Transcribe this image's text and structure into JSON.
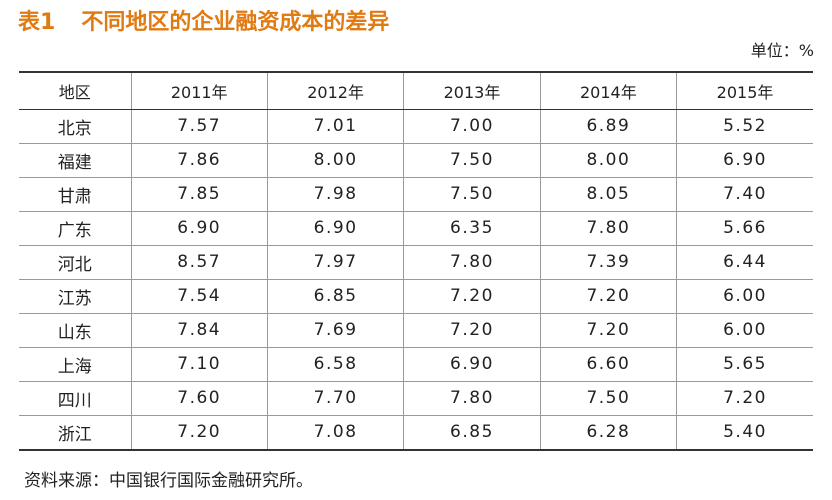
{
  "title": {
    "label": "表1",
    "text": "不同地区的企业融资成本的差异"
  },
  "unit": "单位：%",
  "table": {
    "headers": [
      "地区",
      "2011年",
      "2012年",
      "2013年",
      "2014年",
      "2015年"
    ],
    "rows": [
      {
        "region": "北京",
        "values": [
          "7.57",
          "7.01",
          "7.00",
          "6.89",
          "5.52"
        ]
      },
      {
        "region": "福建",
        "values": [
          "7.86",
          "8.00",
          "7.50",
          "8.00",
          "6.90"
        ]
      },
      {
        "region": "甘肃",
        "values": [
          "7.85",
          "7.98",
          "7.50",
          "8.05",
          "7.40"
        ]
      },
      {
        "region": "广东",
        "values": [
          "6.90",
          "6.90",
          "6.35",
          "7.80",
          "5.66"
        ]
      },
      {
        "region": "河北",
        "values": [
          "8.57",
          "7.97",
          "7.80",
          "7.39",
          "6.44"
        ]
      },
      {
        "region": "江苏",
        "values": [
          "7.54",
          "6.85",
          "7.20",
          "7.20",
          "6.00"
        ]
      },
      {
        "region": "山东",
        "values": [
          "7.84",
          "7.69",
          "7.20",
          "7.20",
          "6.00"
        ]
      },
      {
        "region": "上海",
        "values": [
          "7.10",
          "6.58",
          "6.90",
          "6.60",
          "5.65"
        ]
      },
      {
        "region": "四川",
        "values": [
          "7.60",
          "7.70",
          "7.80",
          "7.50",
          "7.20"
        ]
      },
      {
        "region": "浙江",
        "values": [
          "7.20",
          "7.08",
          "6.85",
          "6.28",
          "5.40"
        ]
      }
    ]
  },
  "source": "资料来源：中国银行国际金融研究所。",
  "colors": {
    "title": "#e07a12",
    "text": "#222222",
    "rule": "#333333",
    "grid": "#9a9a9a"
  }
}
